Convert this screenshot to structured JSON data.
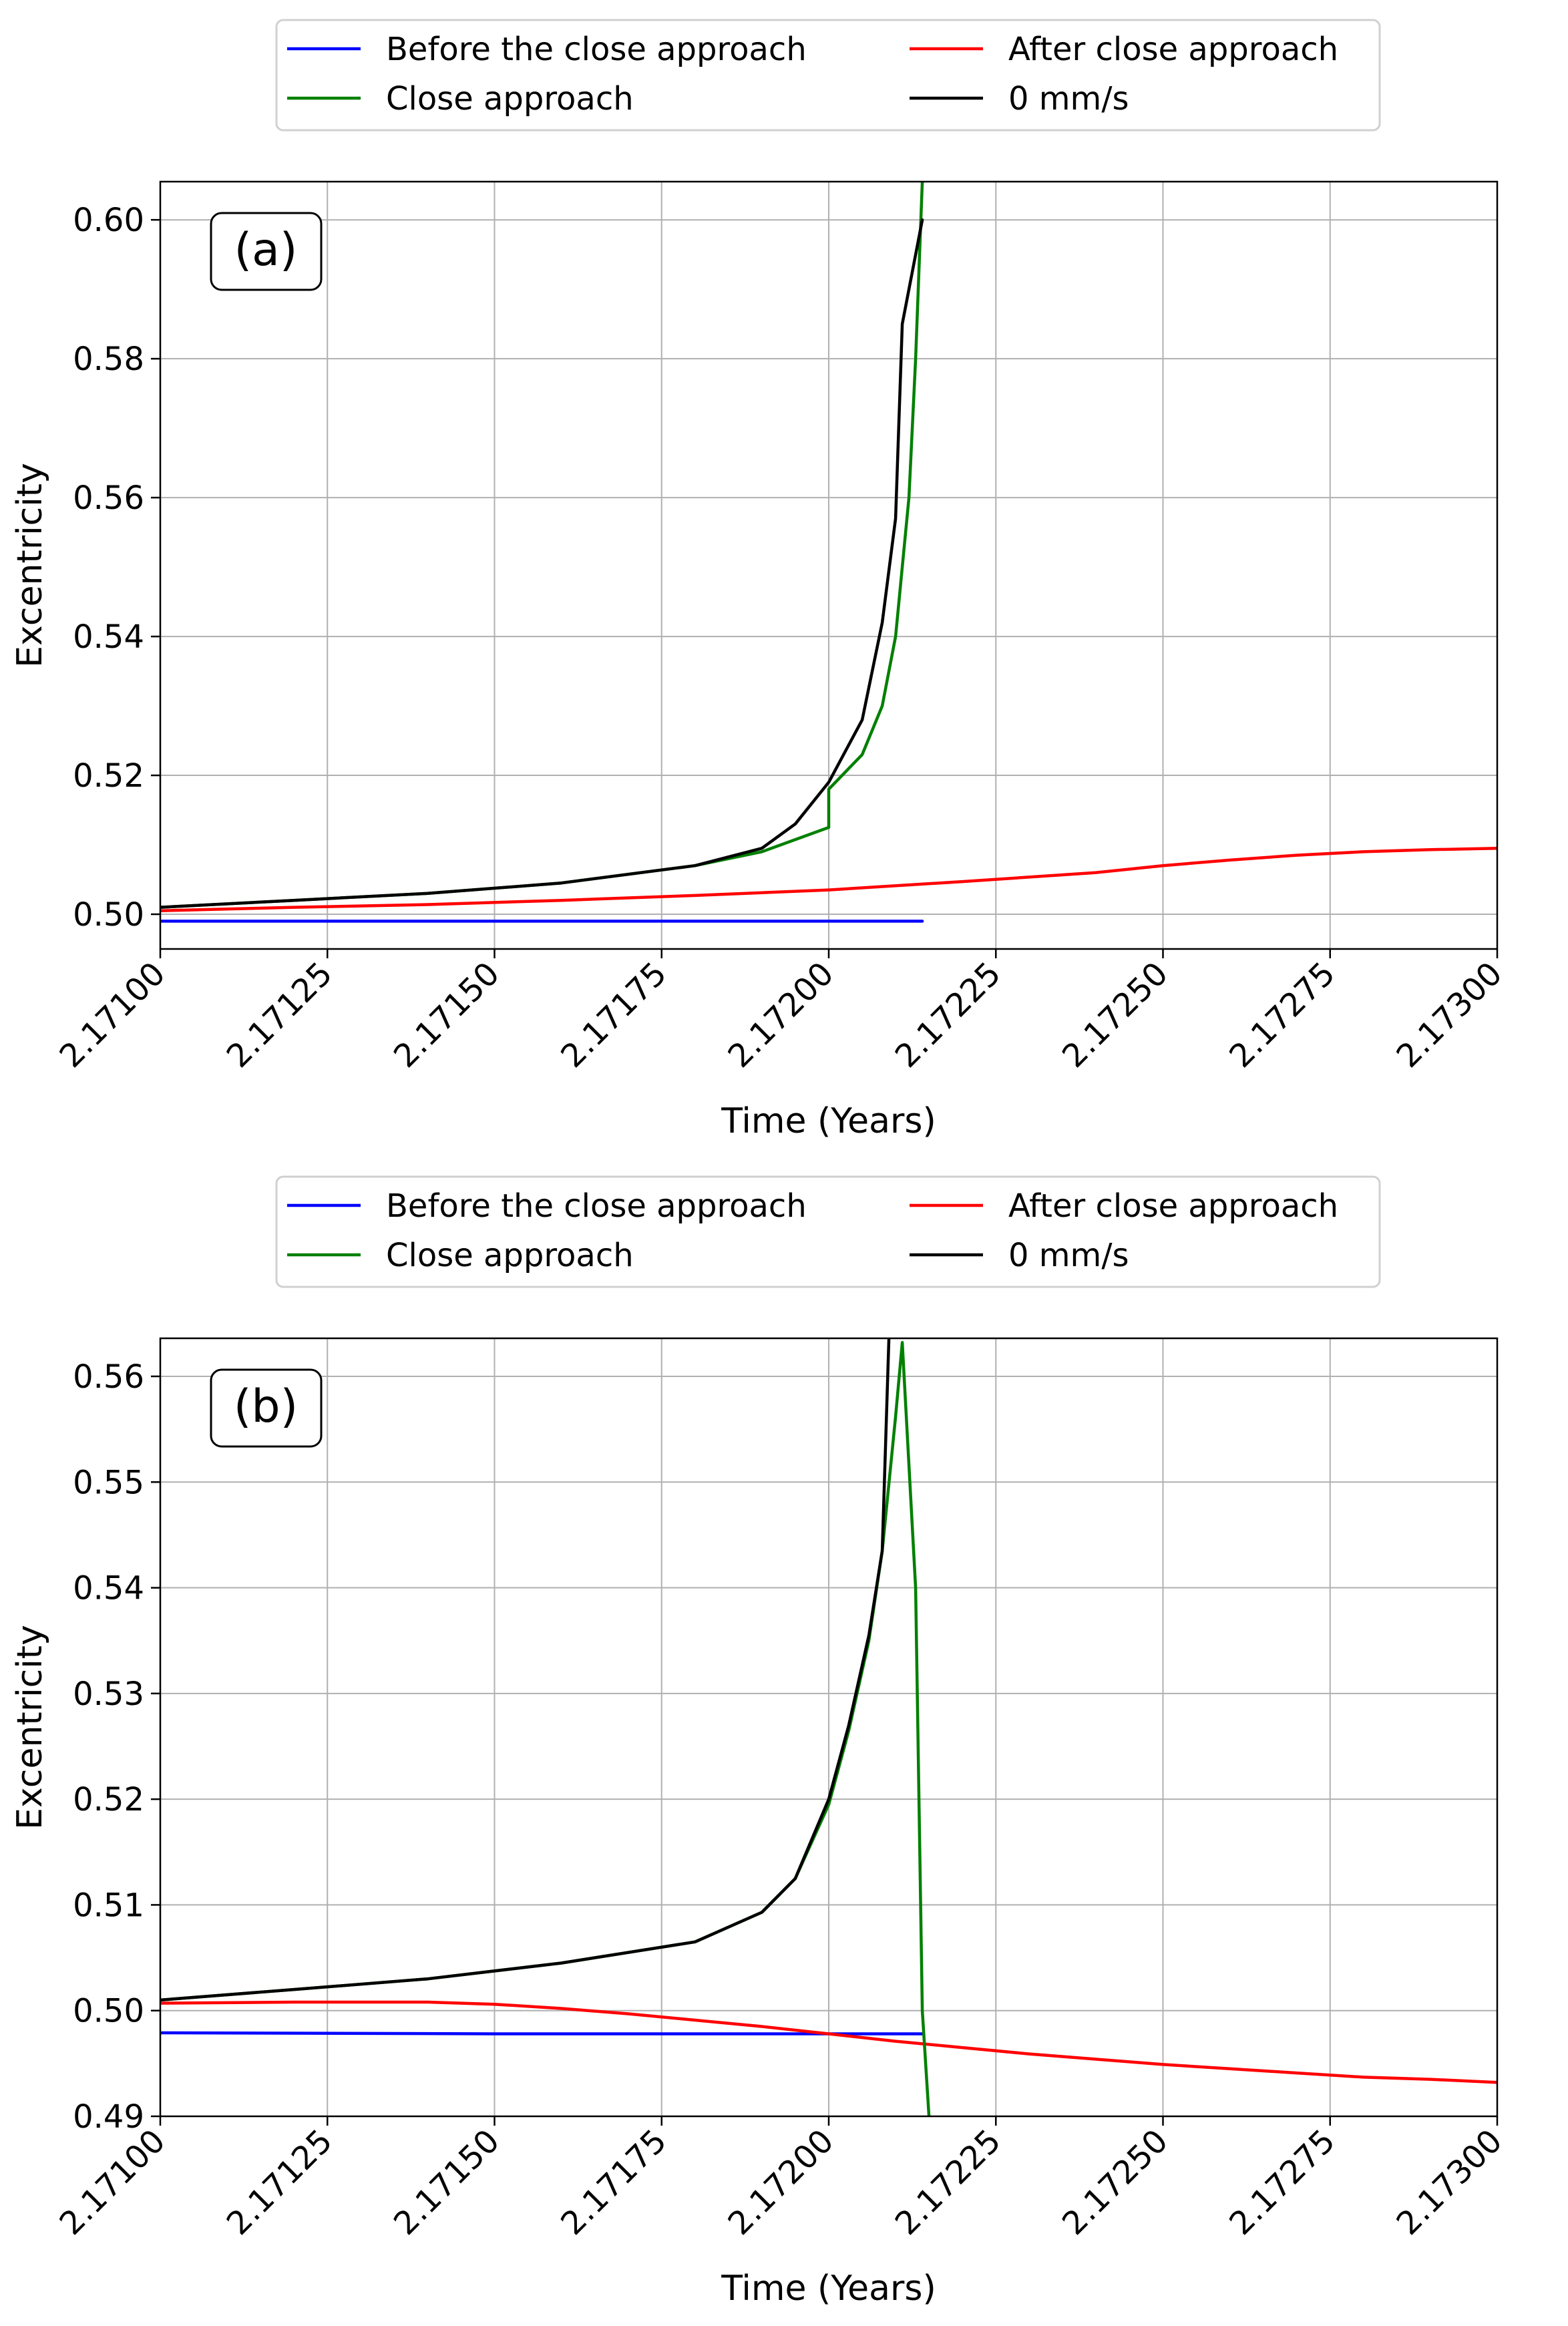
{
  "chart_data": [
    {
      "type": "line",
      "panel_label": "(a)",
      "xlabel": "Time (Years)",
      "ylabel": "Excentricity",
      "xlim": [
        2.171,
        2.173
      ],
      "ylim": [
        0.495,
        0.6055
      ],
      "xticks": [
        2.171,
        2.17125,
        2.1715,
        2.17175,
        2.172,
        2.17225,
        2.1725,
        2.17275,
        2.173
      ],
      "xtick_labels": [
        "2.17100",
        "2.17125",
        "2.17150",
        "2.17175",
        "2.17200",
        "2.17225",
        "2.17250",
        "2.17275",
        "2.17300"
      ],
      "yticks": [
        0.5,
        0.52,
        0.54,
        0.56,
        0.58,
        0.6
      ],
      "ytick_labels": [
        "0.50",
        "0.52",
        "0.54",
        "0.56",
        "0.58",
        "0.60"
      ],
      "grid": true,
      "legend_position": "top-center, above plot",
      "series": [
        {
          "name": "Before the close approach",
          "color": "#0000ff",
          "points": [
            [
              2.171,
              0.499
            ],
            [
              2.1714,
              0.499
            ],
            [
              2.1718,
              0.499
            ],
            [
              2.17214,
              0.499
            ]
          ]
        },
        {
          "name": "After close approach",
          "color": "#ff0000",
          "points": [
            [
              2.171,
              0.5005
            ],
            [
              2.1712,
              0.501
            ],
            [
              2.1714,
              0.5014
            ],
            [
              2.1716,
              0.502
            ],
            [
              2.1718,
              0.5027
            ],
            [
              2.172,
              0.5035
            ],
            [
              2.1722,
              0.5047
            ],
            [
              2.1724,
              0.506
            ],
            [
              2.1725,
              0.507
            ],
            [
              2.1726,
              0.5078
            ],
            [
              2.1727,
              0.5085
            ],
            [
              2.1728,
              0.509
            ],
            [
              2.1729,
              0.5093
            ],
            [
              2.173,
              0.5095
            ]
          ]
        },
        {
          "name": "Close approach",
          "color": "#008000",
          "points": [
            [
              2.171,
              0.501
            ],
            [
              2.1712,
              0.502
            ],
            [
              2.1714,
              0.503
            ],
            [
              2.1716,
              0.5045
            ],
            [
              2.1718,
              0.507
            ],
            [
              2.1719,
              0.509
            ],
            [
              2.172,
              0.5125
            ],
            [
              2.172,
              0.518
            ],
            [
              2.17205,
              0.523
            ],
            [
              2.17208,
              0.53
            ],
            [
              2.1721,
              0.54
            ],
            [
              2.17212,
              0.56
            ],
            [
              2.17213,
              0.58
            ],
            [
              2.17214,
              0.6055
            ]
          ]
        },
        {
          "name": "0 mm/s",
          "color": "#000000",
          "points": [
            [
              2.171,
              0.501
            ],
            [
              2.1712,
              0.502
            ],
            [
              2.1714,
              0.503
            ],
            [
              2.1716,
              0.5045
            ],
            [
              2.1718,
              0.507
            ],
            [
              2.1719,
              0.5095
            ],
            [
              2.17195,
              0.513
            ],
            [
              2.172,
              0.519
            ],
            [
              2.17205,
              0.528
            ],
            [
              2.17208,
              0.542
            ],
            [
              2.1721,
              0.557
            ],
            [
              2.17211,
              0.585
            ],
            [
              2.17214,
              0.6
            ]
          ]
        }
      ]
    },
    {
      "type": "line",
      "panel_label": "(b)",
      "xlabel": "Time (Years)",
      "ylabel": "Excentricity",
      "xlim": [
        2.171,
        2.173
      ],
      "ylim": [
        0.49,
        0.5636
      ],
      "xticks": [
        2.171,
        2.17125,
        2.1715,
        2.17175,
        2.172,
        2.17225,
        2.1725,
        2.17275,
        2.173
      ],
      "xtick_labels": [
        "2.17100",
        "2.17125",
        "2.17150",
        "2.17175",
        "2.17200",
        "2.17225",
        "2.17250",
        "2.17275",
        "2.17300"
      ],
      "yticks": [
        0.49,
        0.5,
        0.51,
        0.52,
        0.53,
        0.54,
        0.55,
        0.56
      ],
      "ytick_labels": [
        "0.49",
        "0.50",
        "0.51",
        "0.52",
        "0.53",
        "0.54",
        "0.55",
        "0.56"
      ],
      "grid": true,
      "legend_position": "top-center, above plot",
      "series": [
        {
          "name": "Before the close approach",
          "color": "#0000ff",
          "points": [
            [
              2.171,
              0.4979
            ],
            [
              2.1715,
              0.4978
            ],
            [
              2.172,
              0.4978
            ],
            [
              2.17214,
              0.4978
            ]
          ]
        },
        {
          "name": "After close approach",
          "color": "#ff0000",
          "points": [
            [
              2.171,
              0.5007
            ],
            [
              2.1712,
              0.5008
            ],
            [
              2.1714,
              0.5008
            ],
            [
              2.1715,
              0.5006
            ],
            [
              2.1716,
              0.5002
            ],
            [
              2.1717,
              0.4997
            ],
            [
              2.1718,
              0.4991
            ],
            [
              2.1719,
              0.4985
            ],
            [
              2.172,
              0.4978
            ],
            [
              2.1721,
              0.4971
            ],
            [
              2.1722,
              0.4965
            ],
            [
              2.1723,
              0.4959
            ],
            [
              2.1724,
              0.4954
            ],
            [
              2.1725,
              0.4949
            ],
            [
              2.1726,
              0.4945
            ],
            [
              2.1727,
              0.4941
            ],
            [
              2.1728,
              0.4937
            ],
            [
              2.1729,
              0.4935
            ],
            [
              2.173,
              0.4932
            ]
          ]
        },
        {
          "name": "Close approach",
          "color": "#008000",
          "points": [
            [
              2.171,
              0.501
            ],
            [
              2.1712,
              0.502
            ],
            [
              2.1714,
              0.503
            ],
            [
              2.1716,
              0.5045
            ],
            [
              2.1718,
              0.5065
            ],
            [
              2.1719,
              0.5093
            ],
            [
              2.17195,
              0.5125
            ],
            [
              2.172,
              0.5195
            ],
            [
              2.17203,
              0.5265
            ],
            [
              2.17206,
              0.535
            ],
            [
              2.17208,
              0.5435
            ],
            [
              2.1721,
              0.5562
            ],
            [
              2.17211,
              0.5632
            ],
            [
              2.17213,
              0.54
            ],
            [
              2.17214,
              0.5
            ],
            [
              2.17215,
              0.49
            ]
          ]
        },
        {
          "name": "0 mm/s",
          "color": "#000000",
          "points": [
            [
              2.171,
              0.501
            ],
            [
              2.1712,
              0.502
            ],
            [
              2.1714,
              0.503
            ],
            [
              2.1716,
              0.5045
            ],
            [
              2.1718,
              0.5065
            ],
            [
              2.1719,
              0.5093
            ],
            [
              2.17195,
              0.5125
            ],
            [
              2.172,
              0.52
            ],
            [
              2.17203,
              0.527
            ],
            [
              2.17206,
              0.5355
            ],
            [
              2.17208,
              0.5435
            ],
            [
              2.17209,
              0.5636
            ]
          ]
        }
      ]
    }
  ]
}
